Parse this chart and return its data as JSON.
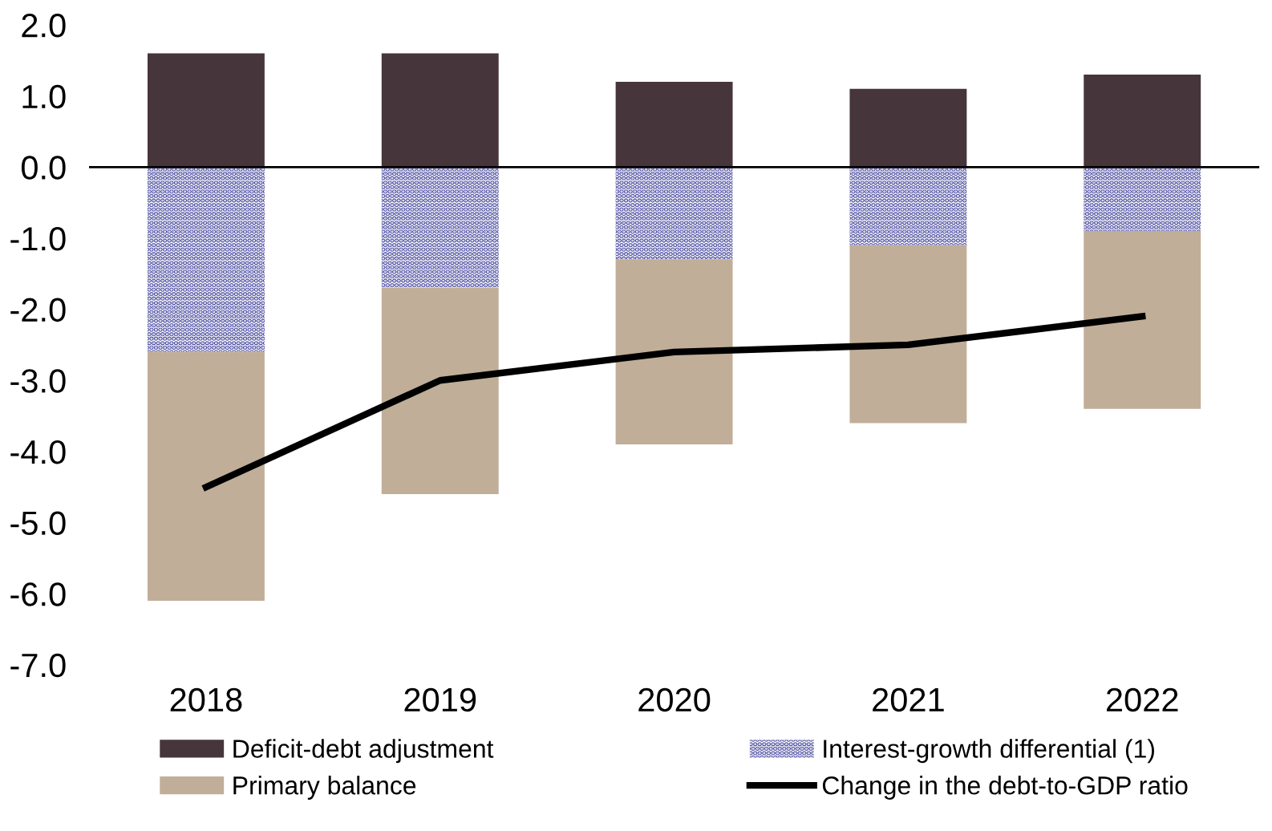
{
  "chart_data": {
    "type": "bar",
    "stacked": true,
    "categories": [
      "2018",
      "2019",
      "2020",
      "2021",
      "2022"
    ],
    "series": [
      {
        "name": "Deficit-debt adjustment",
        "color": "#46353a",
        "values": [
          1.6,
          1.6,
          1.2,
          1.1,
          1.3
        ]
      },
      {
        "name": "Interest-growth differential (1)",
        "color": "#4b4ba0",
        "values": [
          -2.6,
          -1.7,
          -1.3,
          -1.1,
          -0.9
        ]
      },
      {
        "name": "Primary balance",
        "color": "#c0ae98",
        "values": [
          -3.5,
          -2.9,
          -2.6,
          -2.5,
          -2.5
        ]
      },
      {
        "name": "Change in the debt-to-GDP ratio",
        "type": "line",
        "color": "#000000",
        "values": [
          -4.5,
          -3.0,
          -2.6,
          -2.5,
          -2.1
        ]
      }
    ],
    "ylim": [
      -7.0,
      2.0
    ],
    "yticks": [
      {
        "value": -7,
        "label": "-7.0"
      },
      {
        "value": -6,
        "label": "-6.0"
      },
      {
        "value": -5,
        "label": "-5.0"
      },
      {
        "value": -4,
        "label": "-4.0"
      },
      {
        "value": -3,
        "label": "-3.0"
      },
      {
        "value": -2,
        "label": "-2.0"
      },
      {
        "value": -1,
        "label": "-1.0"
      },
      {
        "value": 0,
        "label": "0.0"
      },
      {
        "value": 1,
        "label": "1.0"
      },
      {
        "value": 2,
        "label": "2.0"
      }
    ],
    "ref_lines": [
      {
        "axis": "y",
        "value": 0,
        "color": "#000000"
      }
    ],
    "grid": false,
    "legend": "bottom",
    "marker": "none",
    "line_style": "solid"
  }
}
